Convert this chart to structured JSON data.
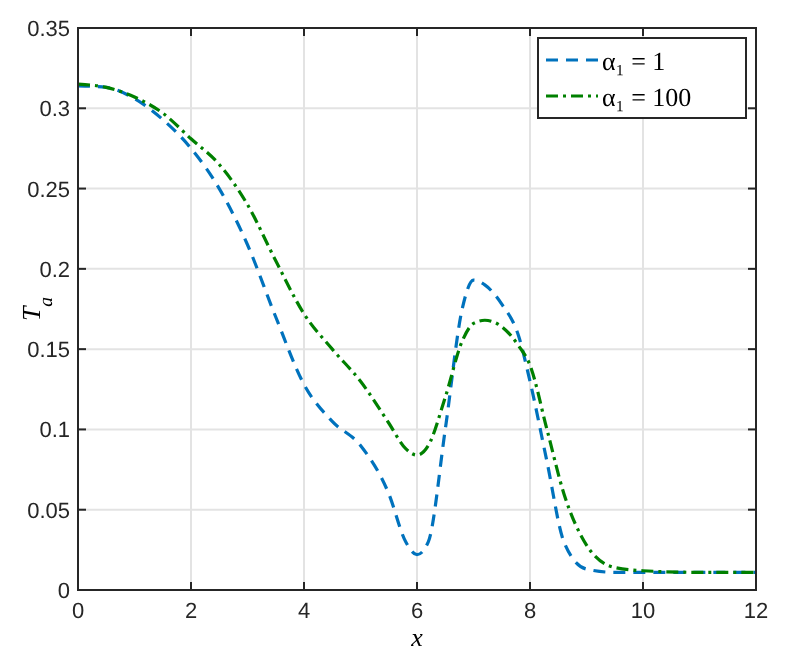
{
  "chart_data": {
    "type": "line",
    "xlabel": "x",
    "ylabel": "T$_{a}$",
    "xlim": [
      0,
      12
    ],
    "xticks": [
      0,
      2,
      4,
      6,
      8,
      10,
      12
    ],
    "ylim": [
      0,
      0.35
    ],
    "yticks": [
      0,
      0.05,
      0.1,
      0.15,
      0.2,
      0.25,
      0.3,
      0.35
    ],
    "grid": true,
    "legend": "top right",
    "x": [
      0,
      0.5,
      1,
      1.5,
      2,
      2.5,
      3,
      3.5,
      4,
      4.5,
      5,
      5.5,
      5.8,
      6,
      6.2,
      6.5,
      6.8,
      7,
      7.2,
      7.5,
      7.8,
      8,
      8.3,
      8.6,
      9,
      9.5,
      10,
      11,
      12
    ],
    "series": [
      {
        "name": "α₁ = 1",
        "color": "#0072bd",
        "line_style": "dashed",
        "values": [
          0.314,
          0.313,
          0.306,
          0.293,
          0.275,
          0.25,
          0.215,
          0.17,
          0.128,
          0.105,
          0.09,
          0.06,
          0.03,
          0.022,
          0.03,
          0.1,
          0.175,
          0.193,
          0.19,
          0.178,
          0.158,
          0.13,
          0.08,
          0.03,
          0.013,
          0.011,
          0.011,
          0.011,
          0.011
        ]
      },
      {
        "name": "α₁ = 100",
        "color": "#008000",
        "line_style": "dashdot",
        "values": [
          0.315,
          0.313,
          0.307,
          0.297,
          0.281,
          0.265,
          0.24,
          0.205,
          0.172,
          0.15,
          0.13,
          0.104,
          0.088,
          0.084,
          0.09,
          0.12,
          0.155,
          0.166,
          0.168,
          0.164,
          0.152,
          0.14,
          0.1,
          0.06,
          0.028,
          0.014,
          0.012,
          0.011,
          0.011
        ]
      }
    ]
  }
}
